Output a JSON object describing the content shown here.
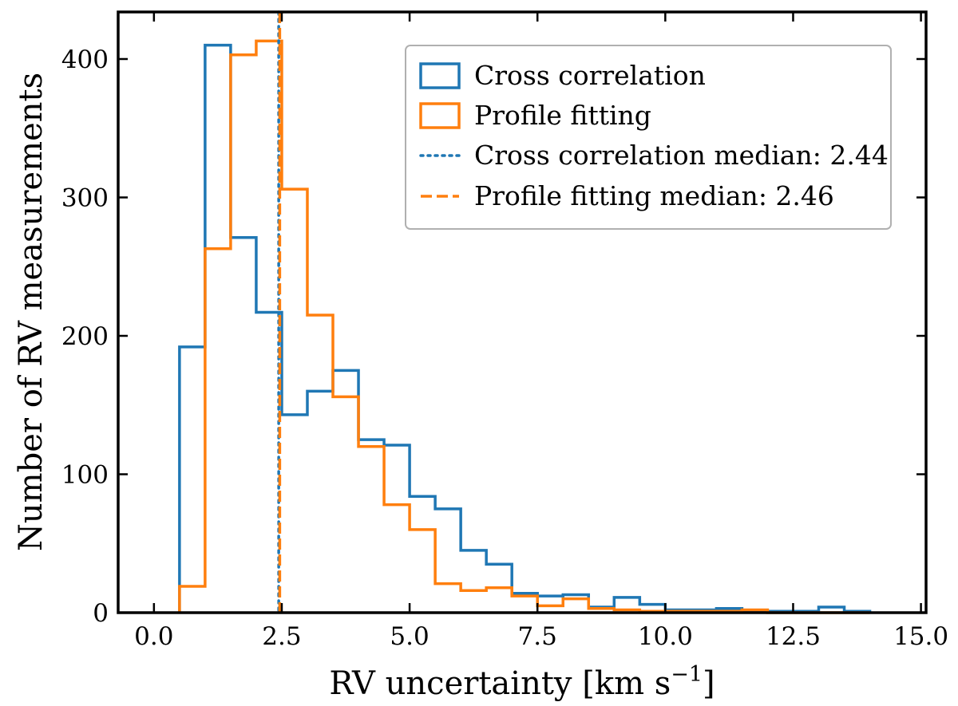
{
  "chart_data": {
    "type": "histogram",
    "xlabel": "RV uncertainty [km s",
    "xlabel_sup": "−1",
    "xlabel_end": "]",
    "ylabel": "Number of RV measurements",
    "xlim": [
      -0.7,
      15.1
    ],
    "ylim": [
      0,
      434
    ],
    "x_ticks": [
      0.0,
      2.5,
      5.0,
      7.5,
      10.0,
      12.5,
      15.0
    ],
    "x_tick_labels": [
      "0.0",
      "2.5",
      "5.0",
      "7.5",
      "10.0",
      "12.5",
      "15.0"
    ],
    "y_ticks": [
      0,
      100,
      200,
      300,
      400
    ],
    "y_tick_labels": [
      "0",
      "100",
      "200",
      "300",
      "400"
    ],
    "bin_edges": [
      0.5,
      1.0,
      1.5,
      2.0,
      2.5,
      3.0,
      3.5,
      4.0,
      4.5,
      5.0,
      5.5,
      6.0,
      6.5,
      7.0,
      7.5,
      8.0,
      8.5,
      9.0,
      9.5,
      10.0,
      10.5,
      11.0,
      11.5,
      12.0,
      12.5,
      13.0,
      13.5,
      14.0
    ],
    "series": [
      {
        "name": "Cross correlation",
        "color": "#1f77b4",
        "values": [
          192,
          410,
          271,
          217,
          143,
          160,
          175,
          125,
          121,
          84,
          75,
          45,
          35,
          14,
          12,
          13,
          4,
          11,
          6,
          2,
          2,
          3,
          1,
          1,
          1,
          4,
          1
        ]
      },
      {
        "name": "Profile fitting",
        "color": "#ff7f0e",
        "values": [
          19,
          263,
          403,
          413,
          306,
          215,
          156,
          120,
          78,
          60,
          21,
          16,
          18,
          12,
          5,
          10,
          3,
          2,
          1,
          1,
          1,
          1,
          2,
          0,
          0,
          0,
          0
        ]
      }
    ],
    "medians": [
      {
        "name": "Cross correlation median: 2.44",
        "value": 2.44,
        "color": "#1f77b4",
        "style": "dotted"
      },
      {
        "name": "Profile fitting median: 2.46",
        "value": 2.46,
        "color": "#ff7f0e",
        "style": "dashed"
      }
    ],
    "legend": {
      "position": "top-right",
      "entries": [
        "Cross correlation",
        "Profile fitting",
        "Cross correlation median: 2.44",
        "Profile fitting median: 2.46"
      ]
    }
  }
}
